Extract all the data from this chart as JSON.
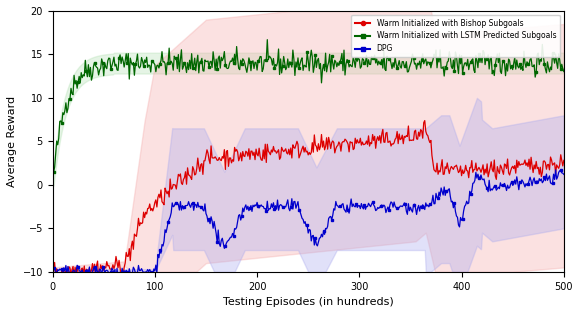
{
  "title": "",
  "xlabel": "Testing Episodes (in hundreds)",
  "ylabel": "Average Reward",
  "xlim": [
    0,
    500
  ],
  "ylim": [
    -10,
    20
  ],
  "yticks": [
    -10,
    -5,
    0,
    5,
    10,
    15,
    20
  ],
  "xticks": [
    0,
    100,
    200,
    300,
    400,
    500
  ],
  "legend_labels": [
    "Warm Initialized with Bishop Subgoals",
    "Warm Initialized with LSTM Predicted Subgoals",
    "DPG"
  ],
  "line_colors": [
    "#dd0000",
    "#006600",
    "#0000cc"
  ],
  "shade_colors": [
    "#f4aaaa",
    "#aaddaa",
    "#aaaaee"
  ],
  "seed": 42,
  "figsize": [
    5.8,
    3.14
  ],
  "dpi": 100
}
